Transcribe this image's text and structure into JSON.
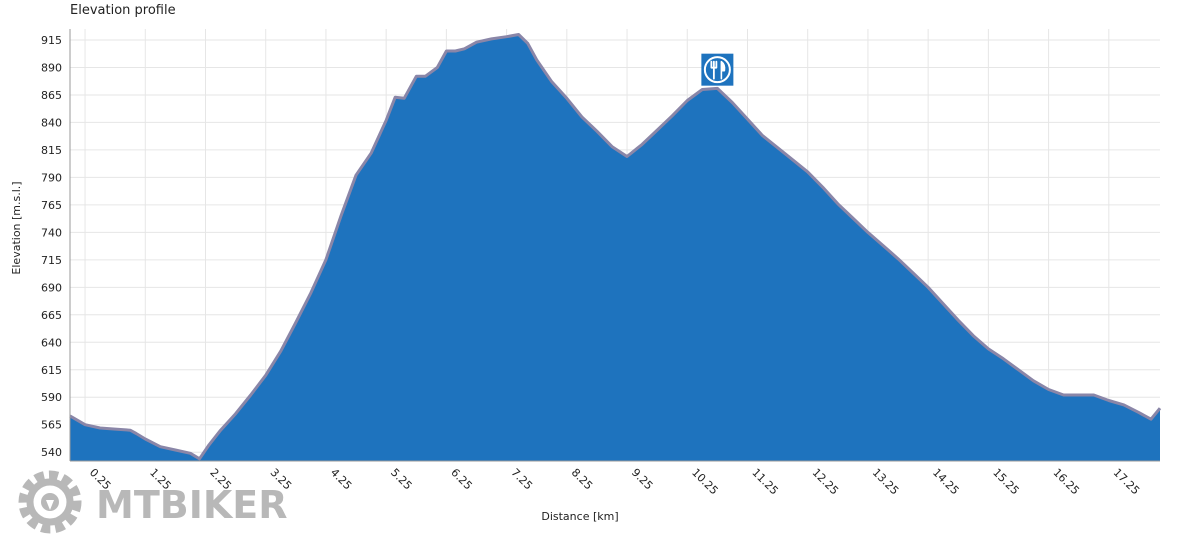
{
  "chart_data": {
    "type": "area",
    "title": "Elevation profile",
    "xlabel": "Distance [km]",
    "ylabel": "Elevation [m.s.l.]",
    "xlim": [
      0,
      18.1
    ],
    "ylim": [
      532,
      925
    ],
    "xticks": [
      0.25,
      1.25,
      2.25,
      3.25,
      4.25,
      5.25,
      6.25,
      7.25,
      8.25,
      9.25,
      10.25,
      11.25,
      12.25,
      13.25,
      14.25,
      15.25,
      16.25,
      17.25
    ],
    "xtick_labels": [
      "0.25",
      "1.25",
      "2.25",
      "3.25",
      "4.25",
      "5.25",
      "6.25",
      "7.25",
      "8.25",
      "9.25",
      "10.25",
      "11.25",
      "12.25",
      "13.25",
      "14.25",
      "15.25",
      "16.25",
      "17.25"
    ],
    "yticks": [
      540,
      565,
      590,
      615,
      640,
      665,
      690,
      715,
      740,
      765,
      790,
      815,
      840,
      865,
      890,
      915
    ],
    "ytick_labels": [
      "540",
      "565",
      "590",
      "615",
      "640",
      "665",
      "690",
      "715",
      "740",
      "765",
      "790",
      "815",
      "840",
      "865",
      "890",
      "915"
    ],
    "grid": true,
    "fill_color": "#1e73be",
    "line_color": "#8a86a8",
    "series": [
      {
        "x": [
          0,
          0.25,
          0.5,
          0.75,
          1.0,
          1.1,
          1.25,
          1.5,
          1.75,
          2.0,
          2.15,
          2.3,
          2.5,
          2.75,
          3.0,
          3.25,
          3.5,
          3.75,
          4.0,
          4.25,
          4.5,
          4.75,
          5.0,
          5.25,
          5.4,
          5.55,
          5.75,
          5.9,
          6.1,
          6.25,
          6.4,
          6.55,
          6.75,
          7.0,
          7.25,
          7.45,
          7.6,
          7.75,
          8.0,
          8.25,
          8.5,
          8.75,
          9.0,
          9.25,
          9.5,
          9.75,
          10.0,
          10.25,
          10.5,
          10.75,
          11.0,
          11.25,
          11.5,
          11.75,
          12.0,
          12.25,
          12.5,
          12.75,
          13.0,
          13.25,
          13.5,
          13.75,
          14.0,
          14.25,
          14.5,
          14.75,
          15.0,
          15.25,
          15.5,
          15.75,
          16.0,
          16.25,
          16.5,
          16.75,
          17.0,
          17.25,
          17.5,
          17.75,
          17.95,
          18.1
        ],
        "y": [
          573,
          565,
          562,
          561,
          560,
          557,
          552,
          545,
          542,
          539,
          534,
          546,
          560,
          575,
          592,
          610,
          632,
          658,
          685,
          715,
          755,
          792,
          812,
          842,
          863,
          862,
          882,
          882,
          890,
          905,
          905,
          907,
          913,
          916,
          918,
          920,
          912,
          897,
          877,
          862,
          845,
          832,
          818,
          809,
          820,
          833,
          846,
          860,
          870,
          871,
          858,
          843,
          828,
          817,
          806,
          795,
          781,
          766,
          753,
          740,
          728,
          716,
          703,
          690,
          675,
          660,
          646,
          634,
          625,
          615,
          605,
          597,
          592,
          592,
          592,
          587,
          583,
          576,
          570,
          580
        ]
      }
    ],
    "marker": {
      "x": 10.75,
      "y": 888,
      "icon": "fork-knife-icon",
      "color": "#1e73be"
    }
  },
  "watermark": {
    "text": "MTBIKER",
    "icon": "gear-icon",
    "color": "#8f8f8f"
  }
}
